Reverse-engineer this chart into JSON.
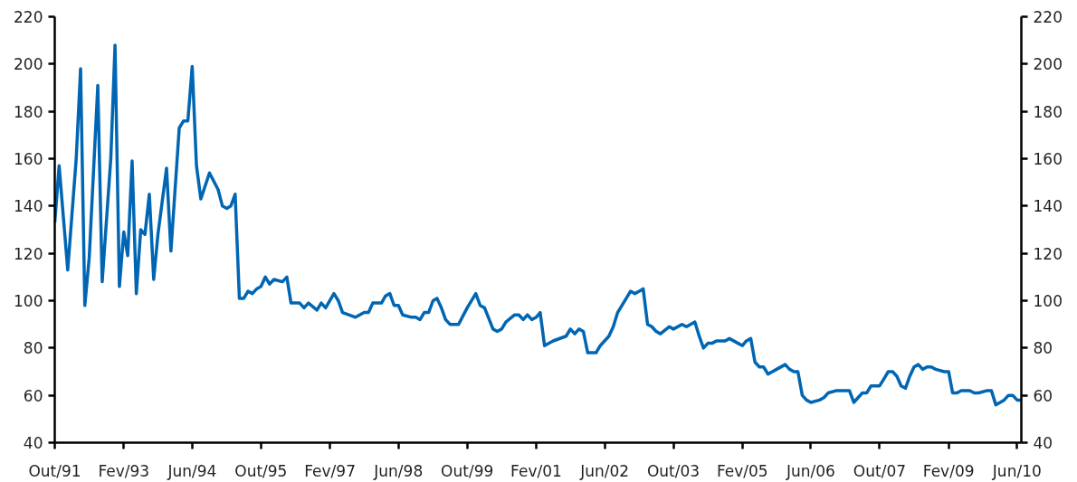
{
  "chart_data": {
    "type": "line",
    "line_style": "solid",
    "marker": "none",
    "grid": false,
    "x": [
      "1991-10",
      "1991-11",
      "1992-01",
      "1992-03",
      "1992-04",
      "1992-05",
      "1992-06",
      "1992-08",
      "1992-09",
      "1992-11",
      "1992-12",
      "1993-01",
      "1993-02",
      "1993-03",
      "1993-04",
      "1993-05",
      "1993-06",
      "1993-07",
      "1993-08",
      "1993-09",
      "1993-10",
      "1993-12",
      "1994-01",
      "1994-03",
      "1994-04",
      "1994-05",
      "1994-06",
      "1994-07",
      "1994-08",
      "1994-10",
      "1994-12",
      "1995-01",
      "1995-02",
      "1995-03",
      "1995-04",
      "1995-05",
      "1995-06",
      "1995-07",
      "1995-08",
      "1995-09",
      "1995-10",
      "1995-11",
      "1995-12",
      "1996-01",
      "1996-03",
      "1996-04",
      "1996-05",
      "1996-07",
      "1996-08",
      "1996-09",
      "1996-11",
      "1996-12",
      "1997-01",
      "1997-03",
      "1997-04",
      "1997-05",
      "1997-08",
      "1997-10",
      "1997-11",
      "1997-12",
      "1998-02",
      "1998-03",
      "1998-04",
      "1998-05",
      "1998-06",
      "1998-07",
      "1998-09",
      "1998-10",
      "1998-11",
      "1998-12",
      "1999-01",
      "1999-02",
      "1999-03",
      "1999-04",
      "1999-05",
      "1999-06",
      "1999-08",
      "1999-10",
      "1999-12",
      "2000-01",
      "2000-02",
      "2000-04",
      "2000-05",
      "2000-06",
      "2000-07",
      "2000-09",
      "2000-10",
      "2000-11",
      "2000-12",
      "2001-01",
      "2001-02",
      "2001-03",
      "2001-04",
      "2001-06",
      "2001-09",
      "2001-10",
      "2001-11",
      "2001-12",
      "2002-01",
      "2002-02",
      "2002-04",
      "2002-05",
      "2002-07",
      "2002-08",
      "2002-09",
      "2002-11",
      "2002-12",
      "2003-01",
      "2003-02",
      "2003-03",
      "2003-04",
      "2003-05",
      "2003-06",
      "2003-07",
      "2003-09",
      "2003-10",
      "2003-12",
      "2004-01",
      "2004-03",
      "2004-04",
      "2004-05",
      "2004-06",
      "2004-07",
      "2004-08",
      "2004-09",
      "2004-10",
      "2004-11",
      "2005-01",
      "2005-02",
      "2005-03",
      "2005-04",
      "2005-05",
      "2005-06",
      "2005-07",
      "2005-08",
      "2005-09",
      "2005-10",
      "2005-12",
      "2006-01",
      "2006-02",
      "2006-03",
      "2006-04",
      "2006-05",
      "2006-06",
      "2006-08",
      "2006-09",
      "2006-10",
      "2006-12",
      "2007-01",
      "2007-03",
      "2007-04",
      "2007-05",
      "2007-06",
      "2007-07",
      "2007-08",
      "2007-10",
      "2007-11",
      "2007-12",
      "2008-01",
      "2008-02",
      "2008-03",
      "2008-04",
      "2008-05",
      "2008-06",
      "2008-07",
      "2008-08",
      "2008-09",
      "2008-10",
      "2008-11",
      "2009-01",
      "2009-02",
      "2009-03",
      "2009-04",
      "2009-05",
      "2009-07",
      "2009-08",
      "2009-09",
      "2009-11",
      "2009-12",
      "2010-01",
      "2010-02",
      "2010-03",
      "2010-04",
      "2010-05",
      "2010-06",
      "2010-07"
    ],
    "series": [
      {
        "color": "#0066b3",
        "values": [
          133,
          157,
          113,
          160,
          198,
          98,
          118,
          191,
          108,
          160,
          208,
          106,
          129,
          119,
          159,
          103,
          130,
          128,
          145,
          109,
          128,
          156,
          121,
          173,
          176,
          176,
          199,
          157,
          143,
          154,
          147,
          140,
          139,
          140,
          145,
          101,
          101,
          104,
          103,
          105,
          106,
          110,
          107,
          109,
          108,
          110,
          99,
          99,
          97,
          99,
          96,
          99,
          97,
          103,
          100,
          95,
          93,
          95,
          95,
          99,
          99,
          102,
          103,
          98,
          98,
          94,
          93,
          93,
          92,
          95,
          95,
          100,
          101,
          97,
          92,
          90,
          90,
          97,
          103,
          98,
          97,
          88,
          87,
          88,
          91,
          94,
          94,
          92,
          94,
          92,
          93,
          95,
          81,
          83,
          85,
          88,
          86,
          88,
          87,
          78,
          78,
          81,
          85,
          89,
          95,
          101,
          104,
          103,
          104,
          105,
          90,
          89,
          87,
          86,
          89,
          88,
          90,
          89,
          91,
          85,
          80,
          82,
          82,
          83,
          83,
          83,
          84,
          82,
          81,
          83,
          84,
          74,
          72,
          72,
          69,
          70,
          71,
          73,
          71,
          70,
          70,
          60,
          58,
          57,
          58,
          59,
          61,
          62,
          62,
          62,
          57,
          59,
          61,
          61,
          64,
          64,
          67,
          70,
          70,
          68,
          64,
          63,
          68,
          72,
          73,
          71,
          72,
          72,
          71,
          70,
          70,
          61,
          61,
          62,
          62,
          61,
          61,
          62,
          62,
          56,
          57,
          58,
          60,
          60,
          58,
          58
        ]
      }
    ],
    "xlim": [
      "1991-10",
      "2010-07"
    ],
    "xticks": [
      {
        "value": "1991-10",
        "label": "Out/91"
      },
      {
        "value": "1993-02",
        "label": "Fev/93"
      },
      {
        "value": "1994-06",
        "label": "Jun/94"
      },
      {
        "value": "1995-10",
        "label": "Out/95"
      },
      {
        "value": "1997-02",
        "label": "Fev/97"
      },
      {
        "value": "1998-06",
        "label": "Jun/98"
      },
      {
        "value": "1999-10",
        "label": "Out/99"
      },
      {
        "value": "2001-02",
        "label": "Fev/01"
      },
      {
        "value": "2002-06",
        "label": "Jun/02"
      },
      {
        "value": "2003-10",
        "label": "Out/03"
      },
      {
        "value": "2005-02",
        "label": "Fev/05"
      },
      {
        "value": "2006-06",
        "label": "Jun/06"
      },
      {
        "value": "2007-10",
        "label": "Out/07"
      },
      {
        "value": "2009-02",
        "label": "Fev/09"
      },
      {
        "value": "2010-06",
        "label": "Jun/10"
      }
    ],
    "ylim": [
      40,
      220
    ],
    "yticks": [
      40,
      60,
      80,
      100,
      120,
      140,
      160,
      180,
      200,
      220
    ],
    "y2lim": [
      40,
      220
    ],
    "y2ticks": [
      40,
      60,
      80,
      100,
      120,
      140,
      160,
      180,
      200,
      220
    ]
  }
}
